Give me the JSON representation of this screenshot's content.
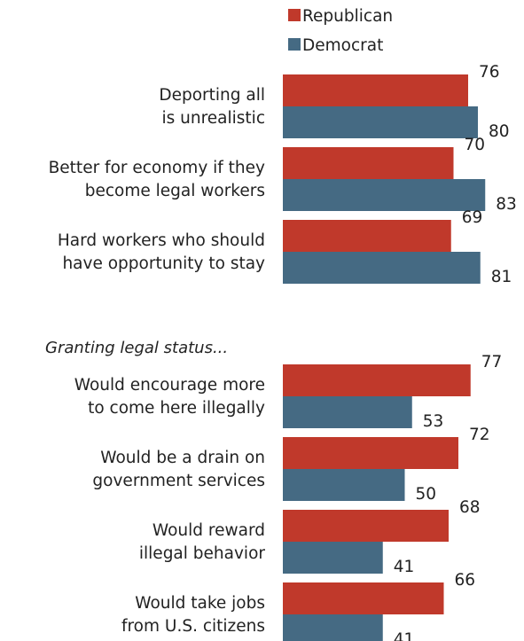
{
  "chart_data": {
    "type": "bar",
    "orientation": "horizontal",
    "legend": [
      {
        "name": "Republican",
        "color": "#c0392b"
      },
      {
        "name": "Democrat",
        "color": "#456a83"
      }
    ],
    "groups": [
      {
        "heading": "",
        "items": [
          {
            "label": [
              "Deporting all",
              "is unrealistic"
            ],
            "values": [
              76,
              80
            ]
          },
          {
            "label": [
              "Better for economy if they",
              "become legal workers"
            ],
            "values": [
              70,
              83
            ]
          },
          {
            "label": [
              "Hard workers who should",
              "have opportunity to stay"
            ],
            "values": [
              69,
              81
            ]
          }
        ]
      },
      {
        "heading": "Granting legal status...",
        "items": [
          {
            "label": [
              "Would encourage more",
              "to come here illegally"
            ],
            "values": [
              77,
              53
            ]
          },
          {
            "label": [
              "Would be a drain on",
              "government services"
            ],
            "values": [
              72,
              50
            ]
          },
          {
            "label": [
              "Would reward",
              "illegal behavior"
            ],
            "values": [
              68,
              41
            ]
          },
          {
            "label": [
              "Would take jobs",
              "from U.S. citizens"
            ],
            "values": [
              66,
              41
            ]
          }
        ]
      }
    ],
    "xlim": [
      0,
      100
    ]
  }
}
